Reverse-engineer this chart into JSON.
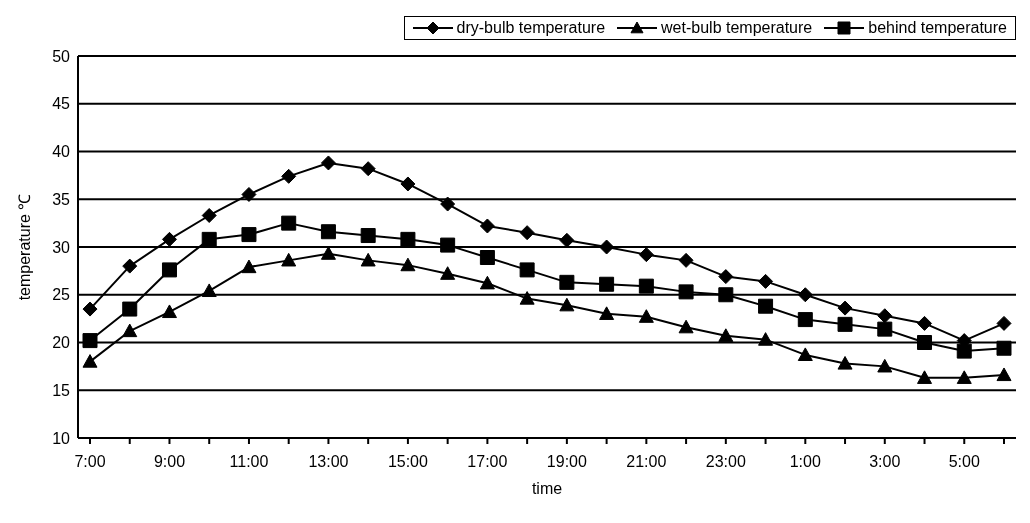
{
  "chart_data": {
    "type": "line",
    "xlabel": "time",
    "ylabel": "temperature ℃",
    "categories": [
      "7:00",
      null,
      "9:00",
      null,
      "11:00",
      null,
      "13:00",
      null,
      "15:00",
      null,
      "17:00",
      null,
      "19:00",
      null,
      "21:00",
      null,
      "23:00",
      null,
      "1:00",
      null,
      "3:00",
      null,
      "5:00",
      null
    ],
    "series": [
      {
        "name": "dry-bulb temperature",
        "color": "#000000",
        "marker": "diamond",
        "values": [
          23.5,
          28,
          30.8,
          33.3,
          35.5,
          37.4,
          38.8,
          38.2,
          36.6,
          34.5,
          32.2,
          31.5,
          30.7,
          30.0,
          29.2,
          28.6,
          26.9,
          26.4,
          25.0,
          23.6,
          22.8,
          22.0,
          20.2,
          22.0
        ]
      },
      {
        "name": "wet-bulb temperature",
        "color": "#000000",
        "marker": "triangle",
        "values": [
          18.0,
          21.2,
          23.2,
          25.4,
          27.9,
          28.6,
          29.3,
          28.6,
          28.1,
          27.2,
          26.2,
          24.6,
          23.9,
          23.0,
          22.7,
          21.6,
          20.7,
          20.3,
          18.7,
          17.8,
          17.5,
          16.3,
          16.3,
          16.6
        ]
      },
      {
        "name": "behind temperature",
        "color": "#000000",
        "marker": "square",
        "values": [
          20.2,
          23.5,
          27.6,
          30.8,
          31.3,
          32.5,
          31.6,
          31.2,
          30.8,
          30.2,
          28.9,
          27.6,
          26.3,
          26.1,
          25.9,
          25.3,
          25.0,
          23.8,
          22.4,
          21.9,
          21.4,
          20.0,
          19.1,
          19.4
        ]
      }
    ],
    "ylim": [
      10,
      50
    ],
    "yticks": [
      10,
      15,
      20,
      25,
      30,
      35,
      40,
      45,
      50
    ],
    "grid": "y",
    "legend": "top right",
    "line_style": "solid"
  }
}
